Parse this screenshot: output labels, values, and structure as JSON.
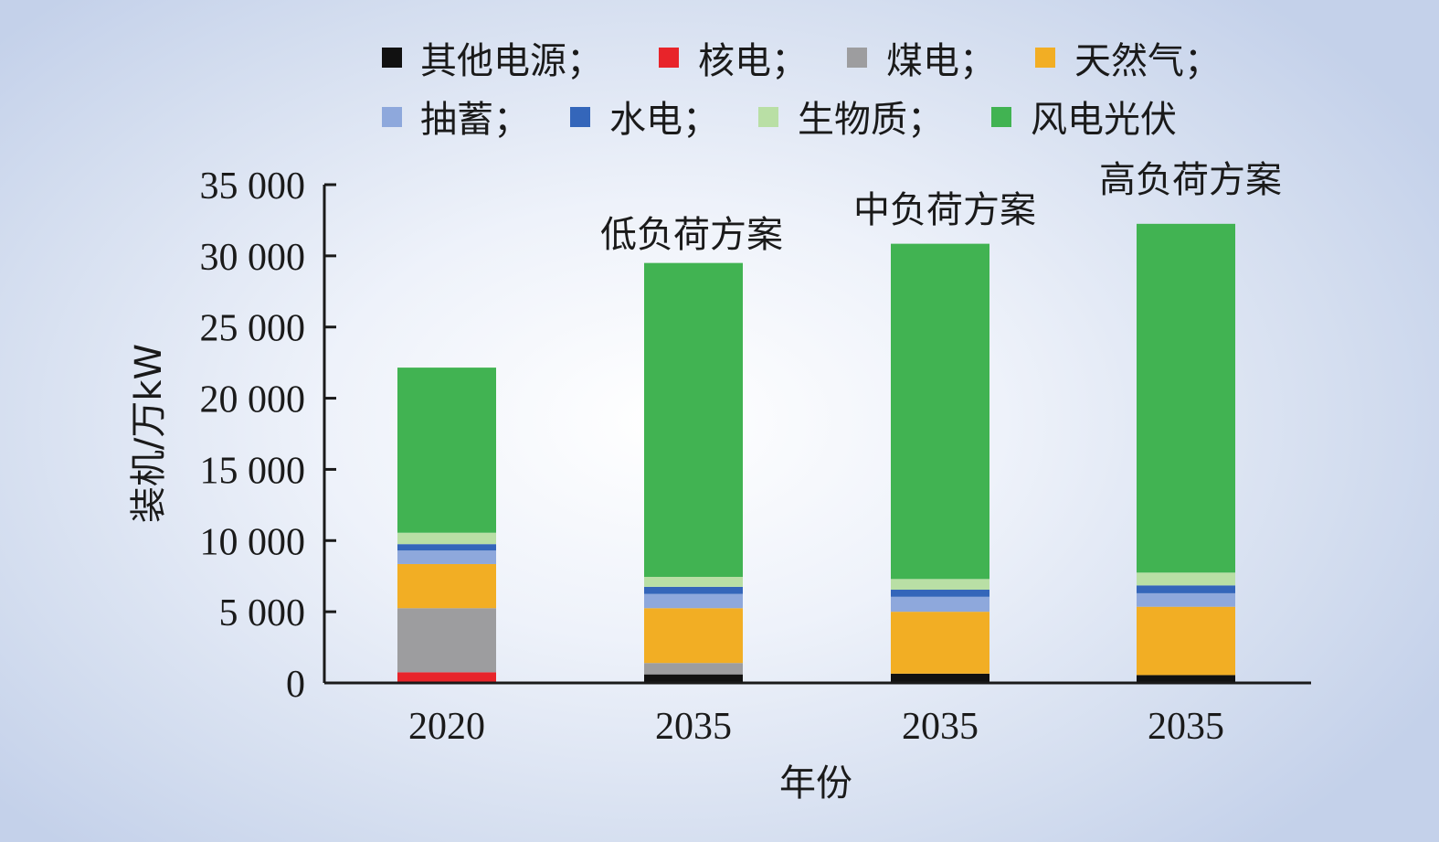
{
  "chart_data": {
    "type": "bar",
    "stacked": true,
    "categories": [
      "2020",
      "2035",
      "2035",
      "2035"
    ],
    "annotations": [
      "",
      "低负荷方案",
      "中负荷方案",
      "高负荷方案"
    ],
    "xlabel": "年份",
    "ylabel": "装机/万kW",
    "ylim": [
      0,
      35000
    ],
    "yticks": [
      0,
      5000,
      10000,
      15000,
      20000,
      25000,
      30000,
      35000
    ],
    "ytick_labels": [
      "0",
      "5 000",
      "10 000",
      "15 000",
      "20 000",
      "25 000",
      "30 000",
      "35 000"
    ],
    "legend_position": "top",
    "series": [
      {
        "name": "其他电源",
        "legend_label": "其他电源；",
        "color": "#111111",
        "values": [
          0,
          600,
          650,
          550
        ]
      },
      {
        "name": "核电",
        "legend_label": "核电；",
        "color": "#e8242a",
        "values": [
          750,
          0,
          0,
          0
        ]
      },
      {
        "name": "煤电",
        "legend_label": "煤电；",
        "color": "#9d9d9f",
        "values": [
          4500,
          800,
          0,
          0
        ]
      },
      {
        "name": "天然气",
        "legend_label": "天然气；",
        "color": "#f2ae24",
        "values": [
          3100,
          3850,
          4350,
          4800
        ]
      },
      {
        "name": "抽蓄",
        "legend_label": "抽蓄；",
        "color": "#8ea8dc",
        "values": [
          950,
          1000,
          1050,
          950
        ]
      },
      {
        "name": "水电",
        "legend_label": "水电；",
        "color": "#3466ba",
        "values": [
          450,
          500,
          500,
          550
        ]
      },
      {
        "name": "生物质",
        "legend_label": "生物质；",
        "color": "#b9dfa5",
        "values": [
          800,
          700,
          750,
          900
        ]
      },
      {
        "name": "风电光伏",
        "legend_label": "风电光伏",
        "color": "#41b352",
        "values": [
          11600,
          22050,
          23550,
          24500
        ]
      }
    ]
  }
}
